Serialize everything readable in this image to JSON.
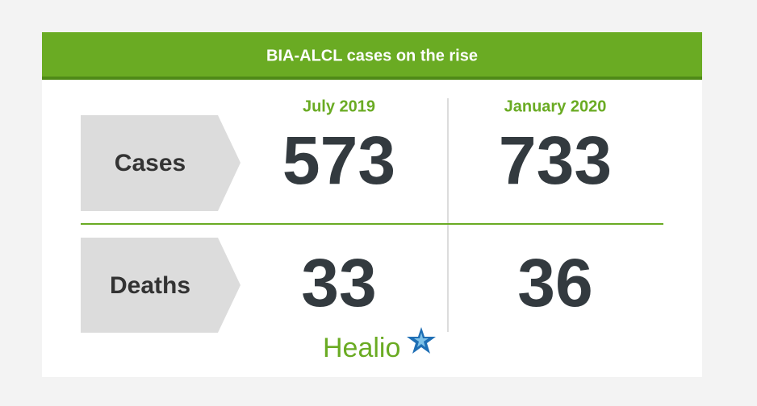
{
  "header": {
    "title": "BIA-ALCL cases on the rise"
  },
  "table": {
    "columns": [
      "July 2019",
      "January 2020"
    ],
    "rows": [
      {
        "label": "Cases",
        "values": [
          573,
          733
        ]
      },
      {
        "label": "Deaths",
        "values": [
          33,
          36
        ]
      }
    ]
  },
  "logo": "Healio"
}
